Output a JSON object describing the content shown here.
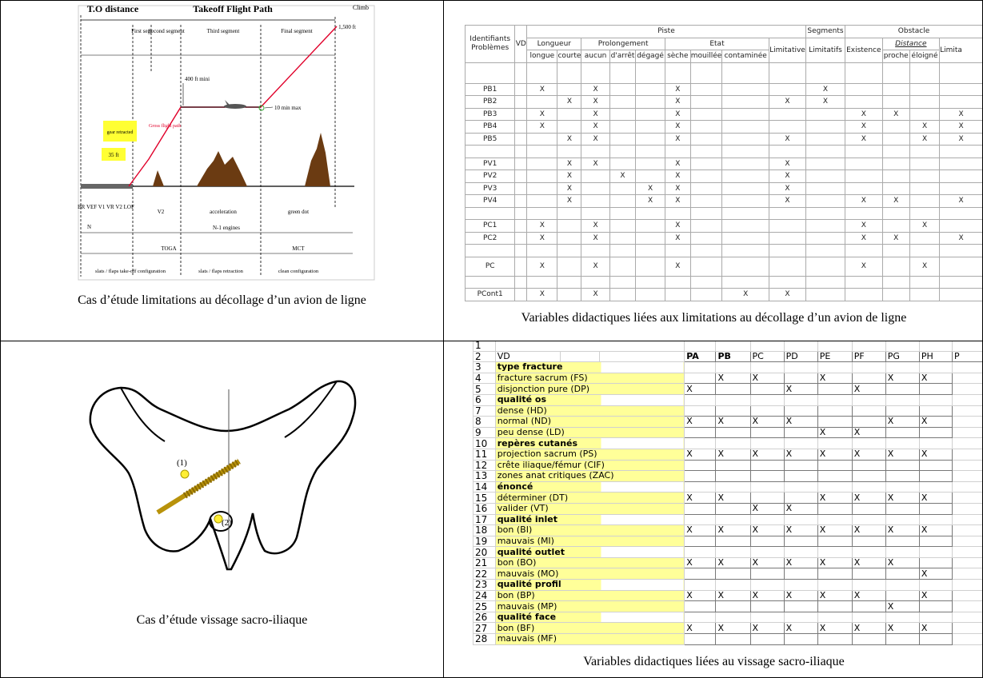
{
  "flight_path": {
    "title_left": "T.O distance",
    "title": "Takeoff Flight Path",
    "climb": "Climb",
    "segments": [
      "First seg.",
      "Second segment",
      "Third segment",
      "Final segment"
    ],
    "altitude": "1,500 ft",
    "level": "400 ft mini",
    "time": "10 min max",
    "gross": "Gross flight path",
    "gear": "gear retracted",
    "screen": "35 ft",
    "speeds": "BR  VEF V1 VR V2 LOF",
    "phases": [
      "V2",
      "acceleration",
      "green dot"
    ],
    "engines": [
      "N",
      "N-1 engines"
    ],
    "thrust": [
      "TOGA",
      "MCT"
    ],
    "config": [
      "slats / flaps take-off configuration",
      "slats / flaps retraction",
      "clean configuration"
    ],
    "caption": "Cas d’étude limitations au décollage d’un avion de ligne"
  },
  "didactic_table": {
    "header": {
      "id": "Identifiants Problèmes",
      "vd": "VD",
      "groups": [
        "Piste",
        "Segments",
        "Obstacle"
      ],
      "subgroups": [
        "Longueur",
        "Prolongement",
        "Etat",
        "Limitative",
        "Limitatifs",
        "Existence",
        "Distance",
        "Limita"
      ],
      "columns": [
        "longue",
        "courte",
        "aucun",
        "d'arrêt",
        "dégagé",
        "sèche",
        "mouillée",
        "contaminée",
        "proche",
        "éloigné"
      ]
    },
    "rows": [
      null,
      {
        "id": "PB1",
        "cells": [
          "X",
          null,
          "X",
          null,
          null,
          "X",
          null,
          null,
          null,
          "X",
          null,
          null,
          null,
          null
        ]
      },
      {
        "id": "PB2",
        "cells": [
          null,
          "X",
          "X",
          null,
          null,
          "X",
          null,
          null,
          "X",
          "X",
          null,
          null,
          null,
          null
        ]
      },
      {
        "id": "PB3",
        "cells": [
          "X",
          null,
          "X",
          null,
          null,
          "X",
          null,
          null,
          null,
          null,
          "X",
          "X",
          null,
          "X"
        ]
      },
      {
        "id": "PB4",
        "cells": [
          "X",
          null,
          "X",
          null,
          null,
          "X",
          null,
          null,
          null,
          null,
          "X",
          null,
          "X",
          "X"
        ]
      },
      {
        "id": "PB5",
        "cells": [
          null,
          "X",
          "X",
          null,
          null,
          "X",
          null,
          null,
          "X",
          null,
          "X",
          null,
          "X",
          "X"
        ]
      },
      null,
      {
        "id": "PV1",
        "cells": [
          null,
          "X",
          "X",
          null,
          null,
          "X",
          null,
          null,
          "X",
          null,
          null,
          null,
          null,
          null
        ]
      },
      {
        "id": "PV2",
        "cells": [
          null,
          "X",
          null,
          "X",
          null,
          "X",
          null,
          null,
          "X",
          null,
          null,
          null,
          null,
          null
        ]
      },
      {
        "id": "PV3",
        "cells": [
          null,
          "X",
          null,
          null,
          "X",
          "X",
          null,
          null,
          "X",
          null,
          null,
          null,
          null,
          null
        ]
      },
      {
        "id": "PV4",
        "cells": [
          null,
          "X",
          null,
          null,
          "X",
          "X",
          null,
          null,
          "X",
          null,
          "X",
          "X",
          null,
          "X"
        ]
      },
      null,
      {
        "id": "PC1",
        "cells": [
          "X",
          null,
          "X",
          null,
          null,
          "X",
          null,
          null,
          null,
          null,
          "X",
          null,
          "X",
          null
        ]
      },
      {
        "id": "PC2",
        "cells": [
          "X",
          null,
          "X",
          null,
          null,
          "X",
          null,
          null,
          null,
          null,
          "X",
          "X",
          null,
          "X"
        ]
      },
      null,
      {
        "id": "PC",
        "cells": [
          "X",
          null,
          "X",
          null,
          null,
          "X",
          null,
          null,
          null,
          null,
          "X",
          null,
          "X",
          null
        ]
      },
      null,
      {
        "id": "PCont1",
        "cells": [
          "X",
          null,
          "X",
          null,
          null,
          null,
          null,
          "X",
          "X",
          null,
          null,
          null,
          null,
          null
        ]
      }
    ],
    "caption": "Variables didactiques liées aux limitations au décollage d’un avion de ligne"
  },
  "pelvis": {
    "labels": [
      "(1)",
      "(2)"
    ],
    "caption": "Cas d’étude  vissage sacro-iliaque"
  },
  "spreadsheet": {
    "first_row": 1,
    "header": {
      "num": 2,
      "label": "VD",
      "columns": [
        "PA",
        "PB",
        "PC",
        "PD",
        "PE",
        "PF",
        "PG",
        "PH",
        "P"
      ]
    },
    "rows": [
      {
        "num": 3,
        "section": "type fracture"
      },
      {
        "num": 4,
        "label": "fracture sacrum (FS)",
        "cells": [
          null,
          "X",
          "X",
          null,
          "X",
          null,
          "X",
          "X"
        ]
      },
      {
        "num": 5,
        "label": "disjonction pure (DP)",
        "cells": [
          "X",
          null,
          null,
          "X",
          null,
          "X",
          null,
          null
        ]
      },
      {
        "num": 6,
        "section": "qualité os"
      },
      {
        "num": 7,
        "label": "dense (HD)",
        "cells": [
          null,
          null,
          null,
          null,
          null,
          null,
          null,
          null
        ]
      },
      {
        "num": 8,
        "label": "normal (ND)",
        "cells": [
          "X",
          "X",
          "X",
          "X",
          null,
          null,
          "X",
          "X"
        ]
      },
      {
        "num": 9,
        "label": "peu dense (LD)",
        "cells": [
          null,
          null,
          null,
          null,
          "X",
          "X",
          null,
          null
        ]
      },
      {
        "num": 10,
        "section": "repères cutanés"
      },
      {
        "num": 11,
        "label": "projection sacrum (PS)",
        "cells": [
          "X",
          "X",
          "X",
          "X",
          "X",
          "X",
          "X",
          "X"
        ]
      },
      {
        "num": 12,
        "label": "crête iliaque/fémur (CIF)",
        "cells": [
          null,
          null,
          null,
          null,
          null,
          null,
          null,
          null
        ]
      },
      {
        "num": 13,
        "label": "zones anat critiques (ZAC)",
        "cells": [
          null,
          null,
          null,
          null,
          null,
          null,
          null,
          null
        ]
      },
      {
        "num": 14,
        "section": "énoncé"
      },
      {
        "num": 15,
        "label": "déterminer (DT)",
        "cells": [
          "X",
          "X",
          null,
          null,
          "X",
          "X",
          "X",
          "X"
        ]
      },
      {
        "num": 16,
        "label": "valider (VT)",
        "cells": [
          null,
          null,
          "X",
          "X",
          null,
          null,
          null,
          null
        ]
      },
      {
        "num": 17,
        "section": "qualité inlet"
      },
      {
        "num": 18,
        "label": "bon (BI)",
        "cells": [
          "X",
          "X",
          "X",
          "X",
          "X",
          "X",
          "X",
          "X"
        ]
      },
      {
        "num": 19,
        "label": "mauvais (MI)",
        "cells": [
          null,
          null,
          null,
          null,
          null,
          null,
          null,
          null
        ]
      },
      {
        "num": 20,
        "section": "qualité outlet"
      },
      {
        "num": 21,
        "label": "bon (BO)",
        "cells": [
          "X",
          "X",
          "X",
          "X",
          "X",
          "X",
          "X",
          null
        ]
      },
      {
        "num": 22,
        "label": "mauvais (MO)",
        "cells": [
          null,
          null,
          null,
          null,
          null,
          null,
          null,
          "X"
        ]
      },
      {
        "num": 23,
        "section": "qualité profil"
      },
      {
        "num": 24,
        "label": "bon (BP)",
        "cells": [
          "X",
          "X",
          "X",
          "X",
          "X",
          "X",
          null,
          "X"
        ]
      },
      {
        "num": 25,
        "label": "mauvais (MP)",
        "cells": [
          null,
          null,
          null,
          null,
          null,
          null,
          "X",
          null
        ]
      },
      {
        "num": 26,
        "section": "qualité face"
      },
      {
        "num": 27,
        "label": "bon (BF)",
        "cells": [
          "X",
          "X",
          "X",
          "X",
          "X",
          "X",
          "X",
          "X"
        ]
      },
      {
        "num": 28,
        "label": "mauvais (MF)",
        "cells": [
          null,
          null,
          null,
          null,
          null,
          null,
          null,
          null
        ]
      }
    ],
    "caption": "Variables didactiques liées au vissage sacro-iliaque"
  }
}
